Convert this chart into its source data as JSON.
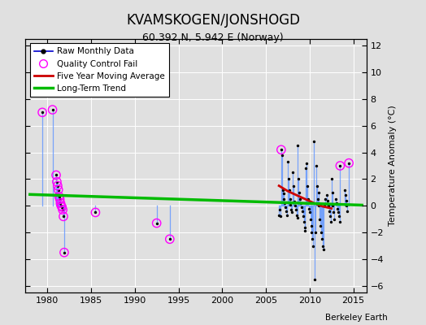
{
  "title": "KVAMSKOGEN/JONSHOGD",
  "subtitle": "60.392 N, 5.942 E (Norway)",
  "ylabel": "Temperature Anomaly (°C)",
  "watermark": "Berkeley Earth",
  "xlim": [
    1977.5,
    2016.5
  ],
  "ylim": [
    -6.5,
    12.5
  ],
  "yticks": [
    -6,
    -4,
    -2,
    0,
    2,
    4,
    6,
    8,
    10,
    12
  ],
  "xticks": [
    1980,
    1985,
    1990,
    1995,
    2000,
    2005,
    2010,
    2015
  ],
  "bg_color": "#e8e8e8",
  "raw_data_x": [
    1979.42,
    1980.58,
    1981.0,
    1981.08,
    1981.17,
    1981.25,
    1981.33,
    1981.42,
    1981.5,
    1981.58,
    1981.67,
    1981.75,
    1981.83,
    1981.92,
    1985.5,
    1992.5,
    1994.0,
    2006.5,
    2006.58,
    2006.67,
    2006.75,
    2006.83,
    2006.92,
    2007.0,
    2007.08,
    2007.17,
    2007.25,
    2007.33,
    2007.42,
    2007.5,
    2007.58,
    2007.67,
    2007.75,
    2007.83,
    2007.92,
    2008.0,
    2008.08,
    2008.17,
    2008.25,
    2008.33,
    2008.42,
    2008.5,
    2008.58,
    2008.67,
    2008.75,
    2008.83,
    2008.92,
    2009.0,
    2009.08,
    2009.17,
    2009.25,
    2009.33,
    2009.42,
    2009.5,
    2009.58,
    2009.67,
    2009.75,
    2009.83,
    2009.92,
    2010.0,
    2010.08,
    2010.17,
    2010.25,
    2010.33,
    2010.42,
    2010.5,
    2010.58,
    2010.67,
    2010.75,
    2010.83,
    2010.92,
    2011.0,
    2011.08,
    2011.17,
    2011.25,
    2011.33,
    2011.42,
    2011.5,
    2011.58,
    2011.67,
    2011.75,
    2012.0,
    2012.08,
    2012.17,
    2012.25,
    2012.33,
    2012.42,
    2012.5,
    2012.58,
    2012.67,
    2012.75,
    2012.83,
    2013.0,
    2013.08,
    2013.17,
    2013.25,
    2013.33,
    2013.42,
    2013.5,
    2014.0,
    2014.08,
    2014.17,
    2014.25,
    2014.33,
    2014.5
  ],
  "raw_data_y": [
    7.0,
    7.2,
    2.3,
    1.8,
    1.5,
    1.2,
    0.7,
    0.5,
    0.2,
    0.0,
    -0.1,
    -0.3,
    -0.8,
    -3.5,
    -0.5,
    -1.3,
    -2.5,
    -0.7,
    -0.3,
    -0.8,
    4.2,
    3.8,
    1.2,
    0.9,
    0.5,
    0.2,
    -0.1,
    -0.4,
    -0.7,
    3.3,
    2.0,
    1.2,
    0.5,
    0.1,
    -0.3,
    -0.5,
    2.5,
    1.5,
    0.3,
    0.0,
    -0.3,
    -0.7,
    -0.9,
    4.5,
    2.0,
    1.0,
    0.5,
    0.2,
    -0.1,
    -0.4,
    -0.8,
    -1.2,
    -1.6,
    -1.9,
    2.8,
    3.2,
    1.5,
    0.5,
    -0.2,
    -0.5,
    -1.0,
    -1.5,
    -2.0,
    -2.5,
    -3.0,
    4.8,
    -5.5,
    -2.0,
    3.0,
    1.5,
    0.5,
    1.0,
    0.0,
    -1.0,
    -1.5,
    -2.0,
    -2.5,
    -3.0,
    -3.3,
    0.0,
    0.5,
    0.8,
    0.4,
    0.0,
    -0.4,
    -0.8,
    -1.2,
    2.0,
    1.0,
    0.0,
    -0.5,
    -1.0,
    0.5,
    0.2,
    -0.2,
    -0.5,
    -0.8,
    -1.2,
    3.0,
    1.2,
    0.8,
    0.4,
    0.0,
    -0.4,
    3.2
  ],
  "qc_fail_x": [
    1979.42,
    1980.58,
    1981.0,
    1981.08,
    1981.17,
    1981.25,
    1981.33,
    1981.42,
    1981.5,
    1981.58,
    1981.67,
    1981.75,
    1981.83,
    1981.92,
    1985.5,
    1992.5,
    1994.0,
    2006.75,
    2013.5,
    2014.5
  ],
  "qc_fail_y": [
    7.0,
    7.2,
    2.3,
    1.8,
    1.5,
    1.2,
    0.7,
    0.5,
    0.2,
    0.0,
    -0.1,
    -0.3,
    -0.8,
    -3.5,
    -0.5,
    -1.3,
    -2.5,
    4.2,
    3.0,
    3.2
  ],
  "moving_avg_x": [
    2006.5,
    2007.0,
    2007.5,
    2008.0,
    2008.5,
    2009.0,
    2009.5,
    2010.0,
    2010.5,
    2011.0,
    2011.5,
    2012.0,
    2012.5
  ],
  "moving_avg_y": [
    1.5,
    1.3,
    1.1,
    0.95,
    0.8,
    0.65,
    0.5,
    0.35,
    0.2,
    0.08,
    -0.05,
    -0.12,
    -0.2
  ],
  "trend_x": [
    1978,
    2016
  ],
  "trend_y": [
    0.85,
    0.05
  ],
  "colors": {
    "raw_stem": "#6699ff",
    "raw_line": "#0000cc",
    "raw_dots": "#000000",
    "qc_fail": "#ff00ff",
    "moving_avg": "#cc0000",
    "trend": "#00bb00",
    "grid": "#ffffff",
    "bg": "#e0e0e0"
  }
}
